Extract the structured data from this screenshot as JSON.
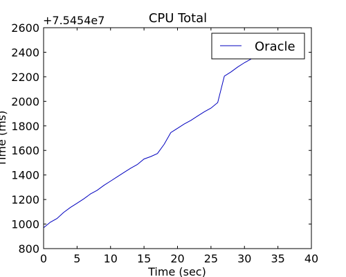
{
  "chart_data": {
    "type": "line",
    "title": "CPU Total",
    "xlabel": "Time (sec)",
    "ylabel": "Time (ms)",
    "offset_label": "+7.5454e7",
    "xlim": [
      0,
      40
    ],
    "ylim": [
      800,
      2600
    ],
    "xticks": [
      0,
      5,
      10,
      15,
      20,
      25,
      30,
      35,
      40
    ],
    "yticks": [
      800,
      1000,
      1200,
      1400,
      1600,
      1800,
      2000,
      2200,
      2400,
      2600
    ],
    "grid": false,
    "legend_position": "top-right",
    "series": [
      {
        "name": "Oracle",
        "color": "#0000bf",
        "x": [
          0,
          1,
          2,
          3,
          4,
          5,
          6,
          7,
          8,
          9,
          10,
          11,
          12,
          13,
          14,
          15,
          16,
          17,
          18,
          19,
          20,
          21,
          22,
          23,
          24,
          25,
          26,
          27,
          28,
          29,
          30,
          31,
          32,
          33,
          34,
          35,
          36
        ],
        "y": [
          970,
          1015,
          1045,
          1095,
          1135,
          1170,
          1205,
          1245,
          1275,
          1315,
          1350,
          1385,
          1420,
          1455,
          1485,
          1530,
          1550,
          1575,
          1650,
          1745,
          1780,
          1815,
          1845,
          1880,
          1915,
          1945,
          1990,
          2205,
          2240,
          2280,
          2315,
          2345,
          2375,
          2410,
          2450,
          2490,
          2530
        ]
      }
    ]
  }
}
